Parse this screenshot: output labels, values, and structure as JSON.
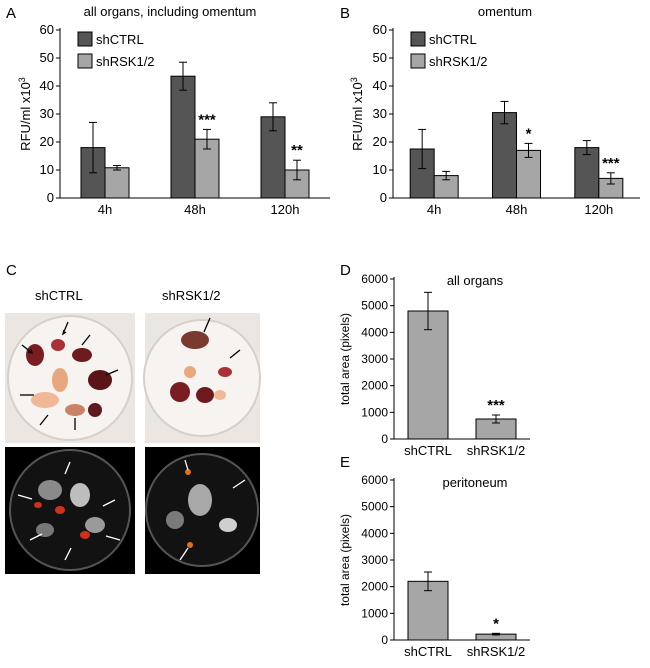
{
  "panel_letters": {
    "a": "A",
    "b": "B",
    "c": "C",
    "d": "D",
    "e": "E"
  },
  "photo_panel": {
    "labels": [
      "shCTRL",
      "shRSK1/2"
    ],
    "colors": {
      "dish_light": "#f4f2f0",
      "dish_dark": "#111111",
      "tissue": "#7a1d22",
      "signal": "#d0301a"
    }
  },
  "chart_data": [
    {
      "id": "A",
      "type": "bar",
      "title": "all organs, including omentum",
      "ylabel": "RFU/ml x10^3",
      "ylim": [
        0,
        60
      ],
      "yticks": [
        0,
        10,
        20,
        30,
        40,
        50,
        60
      ],
      "categories": [
        "4h",
        "48h",
        "120h"
      ],
      "legend": "top-left",
      "grid": false,
      "series": [
        {
          "name": "shCTRL",
          "color": "#555555",
          "values": [
            18,
            43.5,
            29
          ],
          "errors": [
            9,
            5,
            5
          ]
        },
        {
          "name": "shRSK1/2",
          "color": "#a6a6a6",
          "values": [
            10.8,
            21,
            10
          ],
          "errors": [
            0.8,
            3.5,
            3.5
          ]
        }
      ],
      "significance": [
        "",
        "***",
        "**"
      ]
    },
    {
      "id": "B",
      "type": "bar",
      "title": "omentum",
      "ylabel": "RFU/ml x10^3",
      "ylim": [
        0,
        60
      ],
      "yticks": [
        0,
        10,
        20,
        30,
        40,
        50,
        60
      ],
      "categories": [
        "4h",
        "48h",
        "120h"
      ],
      "legend": "top-left",
      "grid": false,
      "series": [
        {
          "name": "shCTRL",
          "color": "#555555",
          "values": [
            17.5,
            30.5,
            18
          ],
          "errors": [
            7,
            4,
            2.5
          ]
        },
        {
          "name": "shRSK1/2",
          "color": "#a6a6a6",
          "values": [
            8,
            17,
            7
          ],
          "errors": [
            1.5,
            2.5,
            2
          ]
        }
      ],
      "significance": [
        "",
        "*",
        "***"
      ]
    },
    {
      "id": "D",
      "type": "bar",
      "title": "all organs",
      "ylabel": "total area (pixels)",
      "ylim": [
        0,
        6000
      ],
      "yticks": [
        0,
        1000,
        2000,
        3000,
        4000,
        5000,
        6000
      ],
      "categories": [
        "shCTRL",
        "shRSK1/2"
      ],
      "grid": false,
      "series": [
        {
          "color": "#a6a6a6",
          "values": [
            4800,
            750
          ],
          "errors": [
            700,
            150
          ]
        }
      ],
      "significance": [
        "",
        "***"
      ]
    },
    {
      "id": "E",
      "type": "bar",
      "title": "peritoneum",
      "ylabel": "total area (pixels)",
      "ylim": [
        0,
        6000
      ],
      "yticks": [
        0,
        1000,
        2000,
        3000,
        4000,
        5000,
        6000
      ],
      "categories": [
        "shCTRL",
        "shRSK1/2"
      ],
      "grid": false,
      "series": [
        {
          "color": "#a6a6a6",
          "values": [
            2200,
            220
          ],
          "errors": [
            350,
            30
          ]
        }
      ],
      "significance": [
        "",
        "*"
      ]
    }
  ]
}
